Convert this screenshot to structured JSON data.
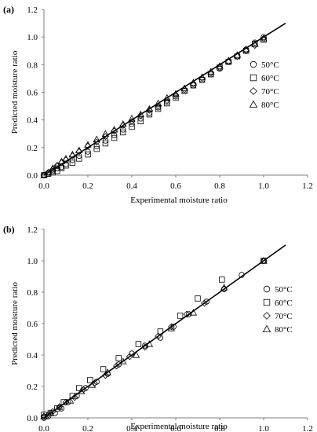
{
  "chart_data": [
    {
      "type": "scatter",
      "panel_label": "(a)",
      "xlabel": "Experimental moisture ratio",
      "ylabel": "Predicted moisture ratio",
      "xlim": [
        0,
        1.2
      ],
      "ylim": [
        0,
        1.2
      ],
      "xticks": [
        "0.0",
        "0.2",
        "0.4",
        "0.6",
        "0.8",
        "1.0",
        "1.2"
      ],
      "yticks": [
        "0.0",
        "0.2",
        "0.4",
        "0.6",
        "0.8",
        "1.0",
        "1.2"
      ],
      "grid": false,
      "legend_position": "right",
      "fit_line": {
        "x": [
          0,
          1.1
        ],
        "y": [
          0,
          1.1
        ]
      },
      "series": [
        {
          "name": "50°C",
          "marker": "circle",
          "x": [
            0.0,
            0.02,
            0.04,
            0.06,
            0.08,
            0.1,
            0.13,
            0.16,
            0.2,
            0.24,
            0.28,
            0.32,
            0.36,
            0.4,
            0.44,
            0.48,
            0.52,
            0.56,
            0.6,
            0.64,
            0.68,
            0.72,
            0.76,
            0.8,
            0.84,
            0.88,
            0.92,
            0.96,
            1.0
          ],
          "y": [
            0.0,
            0.01,
            0.03,
            0.05,
            0.06,
            0.08,
            0.11,
            0.14,
            0.17,
            0.21,
            0.25,
            0.29,
            0.33,
            0.37,
            0.41,
            0.45,
            0.49,
            0.53,
            0.57,
            0.61,
            0.65,
            0.69,
            0.73,
            0.77,
            0.82,
            0.86,
            0.91,
            0.96,
            1.0
          ]
        },
        {
          "name": "60°C",
          "marker": "square",
          "x": [
            0.0,
            0.02,
            0.04,
            0.06,
            0.08,
            0.1,
            0.13,
            0.16,
            0.2,
            0.24,
            0.28,
            0.32,
            0.36,
            0.4,
            0.44,
            0.48,
            0.52,
            0.56,
            0.6,
            0.64,
            0.68,
            0.72,
            0.76,
            0.8,
            0.84,
            0.88,
            0.92,
            0.96,
            1.0
          ],
          "y": [
            0.0,
            0.01,
            0.02,
            0.03,
            0.05,
            0.07,
            0.09,
            0.12,
            0.15,
            0.19,
            0.23,
            0.27,
            0.31,
            0.35,
            0.39,
            0.44,
            0.48,
            0.52,
            0.56,
            0.61,
            0.65,
            0.69,
            0.73,
            0.78,
            0.82,
            0.86,
            0.9,
            0.95,
            0.98
          ]
        },
        {
          "name": "70°C",
          "marker": "diamond",
          "x": [
            0.0,
            0.02,
            0.04,
            0.06,
            0.08,
            0.1,
            0.13,
            0.16,
            0.2,
            0.24,
            0.28,
            0.32,
            0.36,
            0.4,
            0.44,
            0.48,
            0.52,
            0.56,
            0.6,
            0.64,
            0.68,
            0.72,
            0.76,
            0.8,
            0.84,
            0.88,
            0.92,
            0.96,
            1.0
          ],
          "y": [
            0.0,
            0.02,
            0.04,
            0.07,
            0.09,
            0.11,
            0.14,
            0.17,
            0.21,
            0.24,
            0.28,
            0.32,
            0.36,
            0.39,
            0.43,
            0.47,
            0.5,
            0.54,
            0.58,
            0.62,
            0.66,
            0.7,
            0.74,
            0.78,
            0.82,
            0.86,
            0.9,
            0.94,
            0.99
          ]
        },
        {
          "name": "80°C",
          "marker": "triangle",
          "x": [
            0.0,
            0.02,
            0.04,
            0.06,
            0.08,
            0.1,
            0.13,
            0.16,
            0.2,
            0.24,
            0.28,
            0.32,
            0.36,
            0.4,
            0.44,
            0.48,
            0.52,
            0.56,
            0.6,
            0.64,
            0.68,
            0.72,
            0.76,
            0.8,
            0.84,
            0.88,
            0.92,
            0.96,
            1.0
          ],
          "y": [
            0.0,
            0.02,
            0.05,
            0.07,
            0.1,
            0.12,
            0.15,
            0.18,
            0.22,
            0.26,
            0.3,
            0.33,
            0.37,
            0.41,
            0.44,
            0.48,
            0.52,
            0.56,
            0.59,
            0.63,
            0.67,
            0.71,
            0.75,
            0.79,
            0.83,
            0.87,
            0.91,
            0.95,
            0.99
          ]
        }
      ]
    },
    {
      "type": "scatter",
      "panel_label": "(b)",
      "xlabel": "Experimental moisture ratio",
      "ylabel": "Predicted moisture ratio",
      "xlim": [
        0,
        1.2
      ],
      "ylim": [
        0,
        1.2
      ],
      "xticks": [
        "0.0",
        "0.2",
        "0.4",
        "0.6",
        "0.8",
        "1.0",
        "1.2"
      ],
      "yticks": [
        "0.0",
        "0.2",
        "0.4",
        "0.6",
        "0.8",
        "1.0",
        "1.2"
      ],
      "grid": false,
      "legend_position": "right",
      "fit_line": {
        "x": [
          0,
          1.1
        ],
        "y": [
          0,
          1.1
        ]
      },
      "series": [
        {
          "name": "50°C",
          "marker": "circle",
          "x": [
            0.0,
            0.02,
            0.05,
            0.08,
            0.11,
            0.15,
            0.19,
            0.24,
            0.29,
            0.34,
            0.4,
            0.46,
            0.53,
            0.59,
            0.66,
            0.74,
            0.82,
            0.9,
            1.0
          ],
          "y": [
            0.0,
            0.01,
            0.03,
            0.06,
            0.1,
            0.14,
            0.19,
            0.23,
            0.28,
            0.34,
            0.41,
            0.46,
            0.51,
            0.58,
            0.66,
            0.74,
            0.82,
            0.91,
            1.0
          ]
        },
        {
          "name": "60°C",
          "marker": "square",
          "x": [
            0.0,
            0.03,
            0.06,
            0.09,
            0.13,
            0.16,
            0.21,
            0.27,
            0.34,
            0.43,
            0.53,
            0.62,
            0.7,
            0.81,
            1.0
          ],
          "y": [
            0.02,
            0.03,
            0.06,
            0.1,
            0.14,
            0.19,
            0.24,
            0.31,
            0.38,
            0.47,
            0.55,
            0.65,
            0.76,
            0.88,
            1.0
          ]
        },
        {
          "name": "70°C",
          "marker": "diamond",
          "x": [
            0.0,
            0.02,
            0.04,
            0.07,
            0.1,
            0.14,
            0.18,
            0.23,
            0.28,
            0.33,
            0.39,
            0.46,
            0.52,
            0.58,
            0.65,
            0.73,
            0.82,
            1.0
          ],
          "y": [
            0.01,
            0.02,
            0.04,
            0.07,
            0.1,
            0.13,
            0.18,
            0.22,
            0.27,
            0.33,
            0.39,
            0.45,
            0.52,
            0.58,
            0.66,
            0.73,
            0.82,
            1.0
          ]
        },
        {
          "name": "80°C",
          "marker": "triangle",
          "x": [
            0.0,
            0.03,
            0.07,
            0.12,
            0.17,
            0.22,
            0.29,
            0.36,
            0.42,
            0.48,
            0.58,
            0.68,
            0.82,
            1.0
          ],
          "y": [
            0.01,
            0.03,
            0.07,
            0.11,
            0.17,
            0.21,
            0.29,
            0.36,
            0.4,
            0.47,
            0.57,
            0.67,
            0.83,
            1.0
          ]
        }
      ]
    }
  ]
}
